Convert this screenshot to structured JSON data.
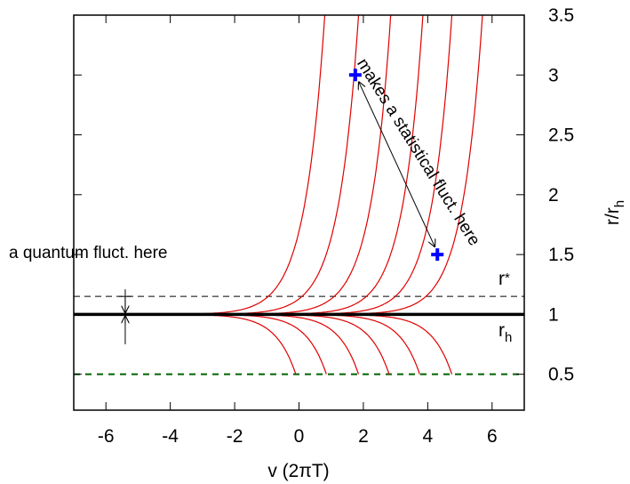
{
  "chart_data": {
    "type": "line",
    "xlabel": "v (2πT)",
    "ylabel": "r/r",
    "ylabel_sub": "h",
    "xlim": [
      -7,
      7
    ],
    "ylim": [
      0.2,
      3.5
    ],
    "xticks": [
      "-6",
      "-4",
      "-2",
      "0",
      "2",
      "4",
      "6"
    ],
    "yticks": [
      "0.5",
      "1",
      "1.5",
      "2",
      "2.5",
      "3",
      "3.5"
    ],
    "horizon_line": {
      "y": 1.0,
      "label": "r",
      "label_sub": "h",
      "color": "#000000"
    },
    "rstar_line": {
      "y": 1.15,
      "label": "r",
      "label_sub": "*",
      "color": "#000000"
    },
    "inner_line": {
      "y": 0.5,
      "color": "#006400"
    },
    "curve_color": "#e00000",
    "outgoing_curves_blowup_v": [
      0.8,
      1.85,
      2.85,
      3.85,
      4.75,
      5.7
    ],
    "infalling_curves_end_v": [
      -0.1,
      0.85,
      1.85,
      2.8,
      3.75,
      4.75
    ],
    "markers": [
      {
        "v": 1.75,
        "r": 3.0,
        "color": "#0000ff"
      },
      {
        "v": 4.3,
        "r": 1.5,
        "color": "#0000ff"
      }
    ],
    "annotations": {
      "quantum": "a quantum fluct. here",
      "statistical": "makes a statistical fluct. here"
    },
    "quantum_arrow": {
      "v": -5.4,
      "r_from": 1.15,
      "r_to": 0.75
    }
  }
}
